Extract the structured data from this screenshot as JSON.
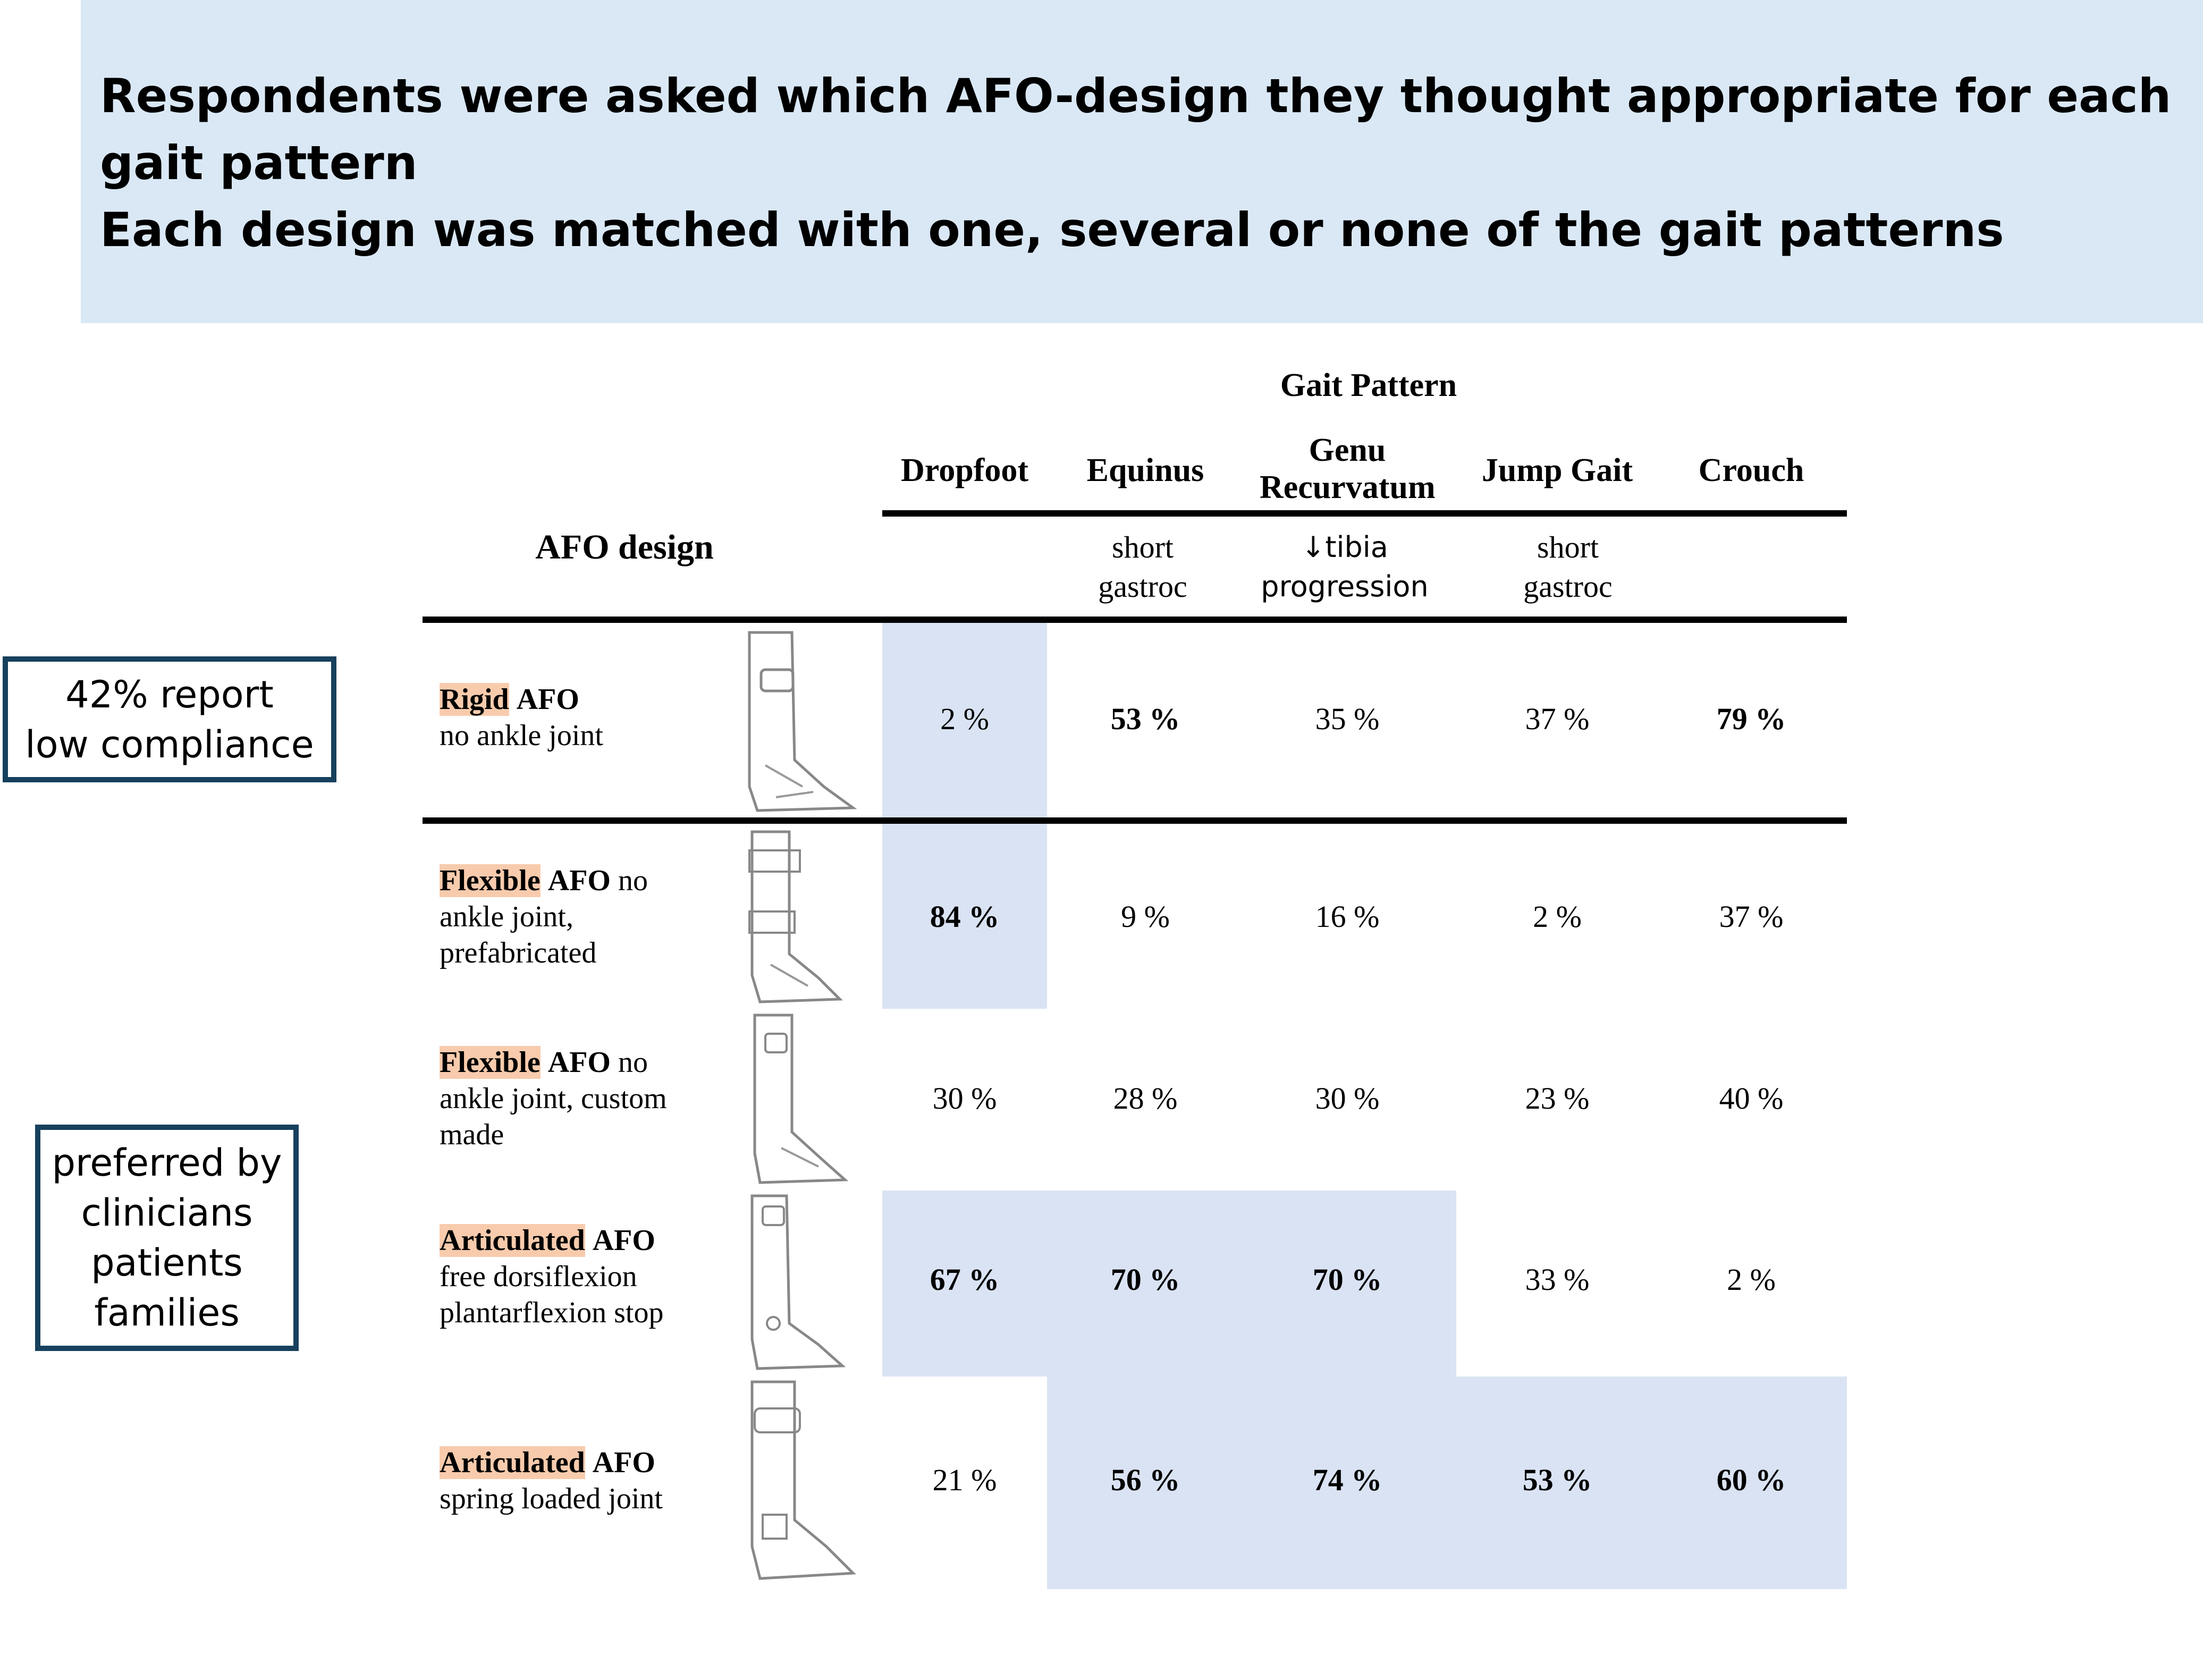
{
  "banner": {
    "line1": "Respondents were asked which AFO-design they thought appropriate for each gait pattern",
    "line2": "Each design was matched with one, several or none of the gait patterns"
  },
  "callouts": {
    "compliance": [
      "42% report",
      "low compliance"
    ],
    "preferred": [
      "preferred by",
      "clinicians",
      "patients",
      "families"
    ]
  },
  "table": {
    "group_header": "Gait Pattern",
    "row_header": "AFO design",
    "columns": [
      {
        "name": "Dropfoot",
        "sub": ""
      },
      {
        "name": "Equinus",
        "sub": "short gastroc"
      },
      {
        "name": "Genu Recurvatum",
        "sub": "↓tibia progression"
      },
      {
        "name": "Jump Gait",
        "sub": "short gastroc"
      },
      {
        "name": "Crouch",
        "sub": ""
      }
    ],
    "rows": [
      {
        "key": "Rigid",
        "afo": "AFO",
        "desc": "no ankle joint",
        "values": [
          "2 %",
          "53 %",
          "35 %",
          "37 %",
          "79 %"
        ]
      },
      {
        "key": "Flexible",
        "afo": "AFO",
        "desc": "no ankle joint, prefabricated",
        "values": [
          "84 %",
          "9 %",
          "16 %",
          "2 %",
          "37 %"
        ]
      },
      {
        "key": "Flexible",
        "afo": "AFO",
        "desc": "no ankle joint, custom made",
        "values": [
          "30 %",
          "28 %",
          "30 %",
          "23 %",
          "40 %"
        ]
      },
      {
        "key": "Articulated",
        "afo": "AFO",
        "desc": "free dorsiflexion plantarflexion stop",
        "values": [
          "67 %",
          "70 %",
          "70 %",
          "33 %",
          "2 %"
        ]
      },
      {
        "key": "Articulated",
        "afo": "AFO",
        "desc": "spring loaded joint",
        "values": [
          "21 %",
          "56 %",
          "74 %",
          "53 %",
          "60 %"
        ]
      }
    ],
    "highlight_color": "#dae3f3",
    "key_highlight_color": "#f8cbad"
  }
}
